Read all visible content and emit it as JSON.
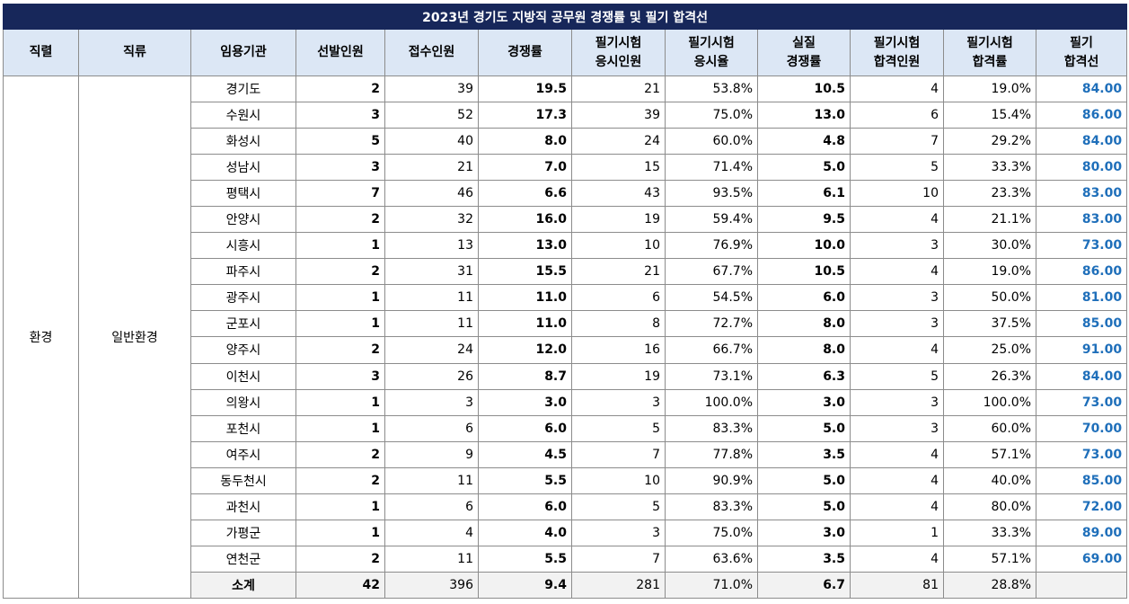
{
  "title": "2023년 경기도 지방직 공무원 경쟁률 및 필기 합격선",
  "headers": [
    [
      "직렬"
    ],
    [
      "직류"
    ],
    [
      "임용기관"
    ],
    [
      "선발인원"
    ],
    [
      "접수인원"
    ],
    [
      "경쟁률"
    ],
    [
      "필기시험",
      "응시인원"
    ],
    [
      "필기시험",
      "응시율"
    ],
    [
      "실질",
      "경쟁률"
    ],
    [
      "필기시험",
      "합격인원"
    ],
    [
      "필기시험",
      "합격률"
    ],
    [
      "필기",
      "합격선"
    ]
  ],
  "series": "환경",
  "category": "일반환경",
  "rows": [
    [
      "경기도",
      "2",
      "39",
      "19.5",
      "21",
      "53.8%",
      "10.5",
      "4",
      "19.0%",
      "84.00"
    ],
    [
      "수원시",
      "3",
      "52",
      "17.3",
      "39",
      "75.0%",
      "13.0",
      "6",
      "15.4%",
      "86.00"
    ],
    [
      "화성시",
      "5",
      "40",
      "8.0",
      "24",
      "60.0%",
      "4.8",
      "7",
      "29.2%",
      "84.00"
    ],
    [
      "성남시",
      "3",
      "21",
      "7.0",
      "15",
      "71.4%",
      "5.0",
      "5",
      "33.3%",
      "80.00"
    ],
    [
      "평택시",
      "7",
      "46",
      "6.6",
      "43",
      "93.5%",
      "6.1",
      "10",
      "23.3%",
      "83.00"
    ],
    [
      "안양시",
      "2",
      "32",
      "16.0",
      "19",
      "59.4%",
      "9.5",
      "4",
      "21.1%",
      "83.00"
    ],
    [
      "시흥시",
      "1",
      "13",
      "13.0",
      "10",
      "76.9%",
      "10.0",
      "3",
      "30.0%",
      "73.00"
    ],
    [
      "파주시",
      "2",
      "31",
      "15.5",
      "21",
      "67.7%",
      "10.5",
      "4",
      "19.0%",
      "86.00"
    ],
    [
      "광주시",
      "1",
      "11",
      "11.0",
      "6",
      "54.5%",
      "6.0",
      "3",
      "50.0%",
      "81.00"
    ],
    [
      "군포시",
      "1",
      "11",
      "11.0",
      "8",
      "72.7%",
      "8.0",
      "3",
      "37.5%",
      "85.00"
    ],
    [
      "양주시",
      "2",
      "24",
      "12.0",
      "16",
      "66.7%",
      "8.0",
      "4",
      "25.0%",
      "91.00"
    ],
    [
      "이천시",
      "3",
      "26",
      "8.7",
      "19",
      "73.1%",
      "6.3",
      "5",
      "26.3%",
      "84.00"
    ],
    [
      "의왕시",
      "1",
      "3",
      "3.0",
      "3",
      "100.0%",
      "3.0",
      "3",
      "100.0%",
      "73.00"
    ],
    [
      "포천시",
      "1",
      "6",
      "6.0",
      "5",
      "83.3%",
      "5.0",
      "3",
      "60.0%",
      "70.00"
    ],
    [
      "여주시",
      "2",
      "9",
      "4.5",
      "7",
      "77.8%",
      "3.5",
      "4",
      "57.1%",
      "73.00"
    ],
    [
      "동두천시",
      "2",
      "11",
      "5.5",
      "10",
      "90.9%",
      "5.0",
      "4",
      "40.0%",
      "85.00"
    ],
    [
      "과천시",
      "1",
      "6",
      "6.0",
      "5",
      "83.3%",
      "5.0",
      "4",
      "80.0%",
      "72.00"
    ],
    [
      "가평군",
      "1",
      "4",
      "4.0",
      "3",
      "75.0%",
      "3.0",
      "1",
      "33.3%",
      "89.00"
    ],
    [
      "연천군",
      "2",
      "11",
      "5.5",
      "7",
      "63.6%",
      "3.5",
      "4",
      "57.1%",
      "69.00"
    ]
  ],
  "subtotal": [
    "소계",
    "42",
    "396",
    "9.4",
    "281",
    "71.0%",
    "6.7",
    "81",
    "28.8%",
    ""
  ],
  "colors": {
    "title_bg": "#17275a",
    "header_bg": "#dce7f5",
    "pass_text": "#1f6fba",
    "subtotal_bg": "#f2f2f2"
  }
}
